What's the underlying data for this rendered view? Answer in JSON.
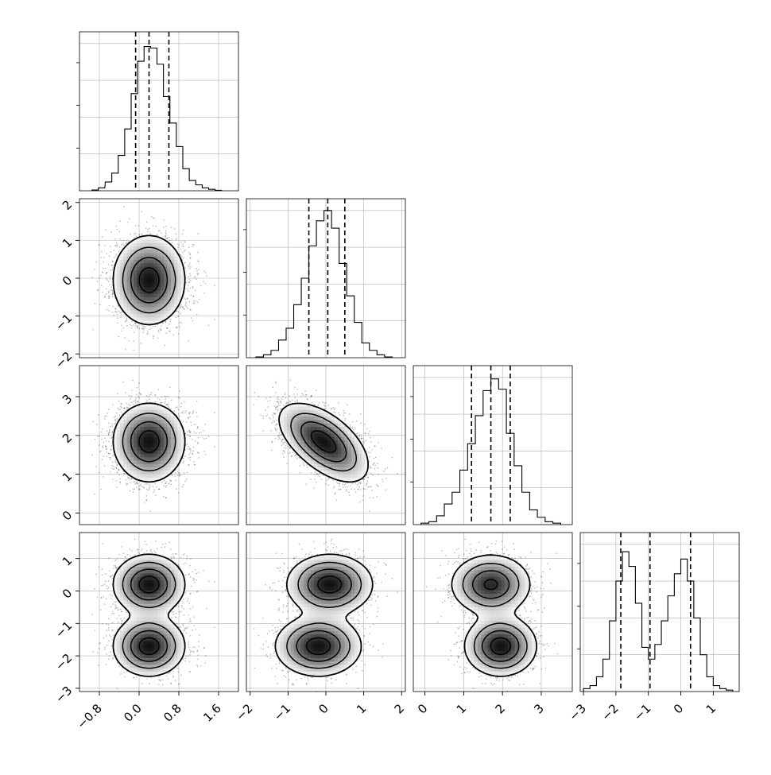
{
  "chart_data": {
    "type": "corner",
    "parameters": 4,
    "colors": {
      "line": "#000000",
      "grid": "#b0b0b0",
      "points": "#000000",
      "background": "#ffffff"
    },
    "grid": true,
    "marginals": [
      {
        "param": 0,
        "xlim": [
          -1.2,
          2.0
        ],
        "ylim": [
          0,
          1.08
        ],
        "quantiles": [
          -0.07,
          0.2,
          0.6
        ],
        "bins_x": [
          -0.95,
          -0.82,
          -0.68,
          -0.55,
          -0.42,
          -0.29,
          -0.16,
          -0.03,
          0.1,
          0.23,
          0.36,
          0.49,
          0.62,
          0.75,
          0.88,
          1.01,
          1.14,
          1.27,
          1.4,
          1.53,
          1.66
        ],
        "counts": [
          0.005,
          0.02,
          0.06,
          0.12,
          0.24,
          0.42,
          0.66,
          0.88,
          0.98,
          0.97,
          0.86,
          0.64,
          0.46,
          0.3,
          0.15,
          0.07,
          0.04,
          0.02,
          0.01,
          0.003
        ]
      },
      {
        "param": 1,
        "xlim": [
          -2.1,
          2.1
        ],
        "ylim": [
          0,
          1.08
        ],
        "quantiles": [
          -0.45,
          0.05,
          0.5
        ],
        "bins_x": [
          -1.85,
          -1.65,
          -1.45,
          -1.25,
          -1.05,
          -0.85,
          -0.65,
          -0.45,
          -0.25,
          -0.05,
          0.15,
          0.35,
          0.55,
          0.75,
          0.95,
          1.15,
          1.35,
          1.55,
          1.75
        ],
        "counts": [
          0.005,
          0.02,
          0.05,
          0.12,
          0.2,
          0.36,
          0.54,
          0.76,
          0.93,
          1.0,
          0.88,
          0.64,
          0.42,
          0.24,
          0.1,
          0.05,
          0.02,
          0.005
        ]
      },
      {
        "param": 2,
        "xlim": [
          -0.3,
          3.8
        ],
        "ylim": [
          0,
          1.08
        ],
        "quantiles": [
          1.2,
          1.7,
          2.2
        ],
        "bins_x": [
          -0.1,
          0.1,
          0.3,
          0.5,
          0.7,
          0.9,
          1.1,
          1.3,
          1.5,
          1.7,
          1.9,
          2.1,
          2.3,
          2.5,
          2.7,
          2.9,
          3.1,
          3.3,
          3.5
        ],
        "counts": [
          0.01,
          0.02,
          0.06,
          0.14,
          0.22,
          0.37,
          0.55,
          0.74,
          0.91,
          0.99,
          0.92,
          0.62,
          0.4,
          0.22,
          0.1,
          0.05,
          0.02,
          0.01
        ]
      },
      {
        "param": 3,
        "xlim": [
          -3.1,
          1.8
        ],
        "ylim": [
          0,
          1.08
        ],
        "quantiles": [
          -1.85,
          -0.95,
          0.3
        ],
        "bins_x": [
          -3.0,
          -2.8,
          -2.6,
          -2.4,
          -2.2,
          -2.0,
          -1.8,
          -1.6,
          -1.4,
          -1.2,
          -1.0,
          -0.8,
          -0.6,
          -0.4,
          -0.2,
          0.0,
          0.2,
          0.4,
          0.6,
          0.8,
          1.0,
          1.2,
          1.4,
          1.6
        ],
        "counts": [
          0.02,
          0.04,
          0.1,
          0.22,
          0.48,
          0.75,
          0.95,
          0.85,
          0.6,
          0.3,
          0.22,
          0.32,
          0.48,
          0.65,
          0.8,
          0.9,
          0.75,
          0.5,
          0.25,
          0.1,
          0.04,
          0.02,
          0.01
        ]
      }
    ],
    "modes": [
      {
        "weight": 0.5,
        "mean": [
          0.2,
          0.1,
          1.7,
          0.2
        ],
        "sd": [
          0.35,
          0.55,
          0.5,
          0.45
        ]
      },
      {
        "weight": 0.5,
        "mean": [
          0.2,
          -0.2,
          1.95,
          -1.7
        ],
        "sd": [
          0.35,
          0.55,
          0.45,
          0.45
        ]
      }
    ],
    "axes": [
      {
        "param": 0,
        "ticks": [
          -0.8,
          0.0,
          0.8,
          1.6
        ],
        "tick_labels": [
          "−0.8",
          "0.0",
          "0.8",
          "1.6"
        ]
      },
      {
        "param": 1,
        "ticks": [
          -2,
          -1,
          0,
          1,
          2
        ],
        "tick_labels": [
          "−2",
          "−1",
          "0",
          "1",
          "2"
        ]
      },
      {
        "param": 2,
        "ticks": [
          0,
          1,
          2,
          3
        ],
        "tick_labels": [
          "0",
          "1",
          "2",
          "3"
        ]
      },
      {
        "param": 3,
        "ticks": [
          -3,
          -2,
          -1,
          0,
          1
        ],
        "tick_labels": [
          "−3",
          "−2",
          "−1",
          "0",
          "1"
        ]
      }
    ]
  }
}
